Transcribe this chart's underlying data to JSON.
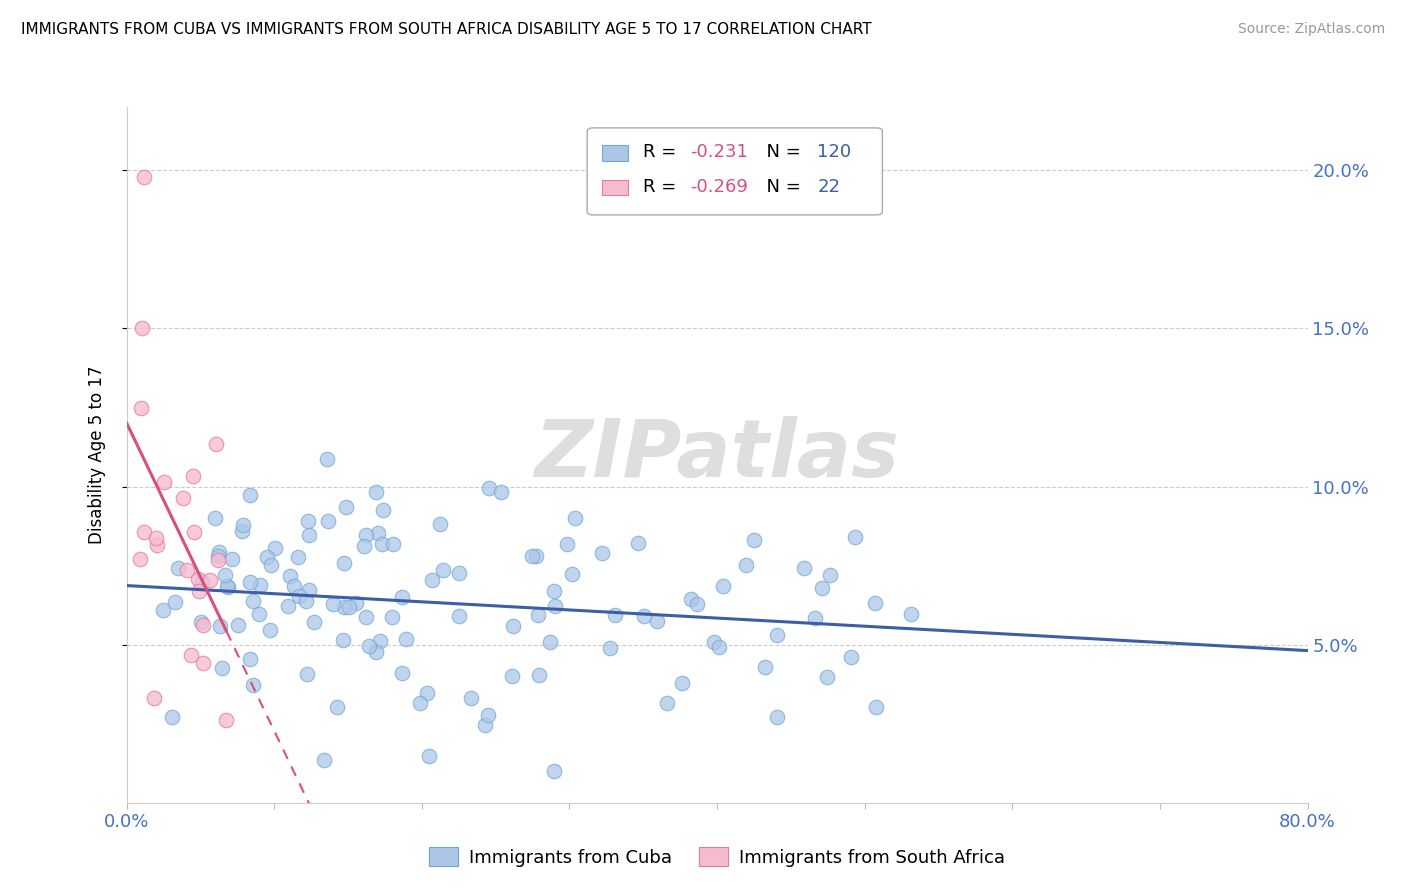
{
  "title": "IMMIGRANTS FROM CUBA VS IMMIGRANTS FROM SOUTH AFRICA DISABILITY AGE 5 TO 17 CORRELATION CHART",
  "source": "Source: ZipAtlas.com",
  "ylabel": "Disability Age 5 to 17",
  "xlim": [
    0.0,
    0.8
  ],
  "ylim": [
    0.0,
    0.22
  ],
  "yticks": [
    0.05,
    0.1,
    0.15,
    0.2
  ],
  "ytick_labels": [
    "5.0%",
    "10.0%",
    "15.0%",
    "20.0%"
  ],
  "series1_color": "#adc6e8",
  "series1_edge": "#6fa8d4",
  "series2_color": "#f5bcd0",
  "series2_edge": "#e87aa0",
  "trend1_color": "#3b5ea6",
  "trend2_color": "#d94f7c",
  "watermark_color": "#dedede",
  "legend_label1": "Immigrants from Cuba",
  "legend_label2": "Immigrants from South Africa",
  "r1_val": "-0.231",
  "n1_val": "120",
  "r2_val": "-0.269",
  "n2_val": "22",
  "r_color": "#d94f7c",
  "n_color": "#3b5ea6",
  "legend_box_color": "#aaaaaa"
}
